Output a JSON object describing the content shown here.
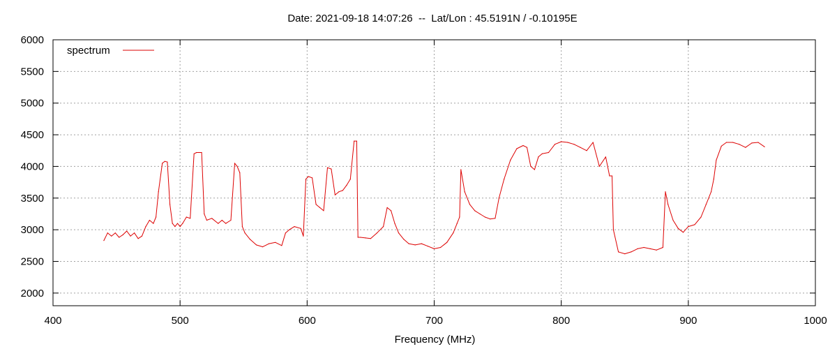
{
  "chart_data": {
    "type": "line",
    "title": "Date: 2021-09-18 14:07:26  --  Lat/Lon : 45.5191N / -0.10195E",
    "xlabel": "Frequency (MHz)",
    "ylabel": "",
    "xlim": [
      400,
      1000
    ],
    "ylim": [
      1800,
      6000
    ],
    "xticks": [
      400,
      500,
      600,
      700,
      800,
      900,
      1000
    ],
    "yticks": [
      2000,
      2500,
      3000,
      3500,
      4000,
      4500,
      5000,
      5500,
      6000
    ],
    "grid": true,
    "legend_position": "top-left",
    "series": [
      {
        "name": "spectrum",
        "color": "#dd0000",
        "x": [
          440,
          443,
          446,
          449,
          452,
          455,
          458,
          461,
          464,
          467,
          470,
          473,
          476,
          479,
          481,
          483,
          486,
          488,
          490,
          492,
          494,
          496,
          498,
          500,
          502,
          505,
          508,
          511,
          513,
          515,
          517,
          519,
          521,
          525,
          530,
          533,
          536,
          540,
          543,
          545,
          547,
          549,
          551,
          555,
          560,
          565,
          570,
          575,
          580,
          583,
          586,
          590,
          595,
          597,
          599,
          601,
          604,
          607,
          610,
          613,
          616,
          619,
          622,
          625,
          628,
          631,
          634,
          637,
          639,
          640,
          642,
          646,
          650,
          655,
          660,
          663,
          666,
          669,
          672,
          676,
          680,
          685,
          690,
          695,
          700,
          705,
          710,
          715,
          718,
          720,
          721,
          724,
          728,
          732,
          736,
          740,
          744,
          748,
          751,
          755,
          760,
          765,
          770,
          773,
          776,
          779,
          782,
          785,
          790,
          795,
          800,
          805,
          810,
          815,
          820,
          825,
          830,
          835,
          838,
          840,
          841,
          845,
          850,
          855,
          860,
          865,
          870,
          875,
          880,
          882,
          884,
          888,
          892,
          896,
          900,
          905,
          910,
          914,
          918,
          920,
          922,
          926,
          930,
          935,
          940,
          945,
          950,
          955,
          960
        ],
        "values": [
          2830,
          2950,
          2900,
          2950,
          2880,
          2920,
          2980,
          2900,
          2950,
          2860,
          2900,
          3050,
          3150,
          3100,
          3200,
          3600,
          4050,
          4080,
          4070,
          3400,
          3100,
          3050,
          3100,
          3050,
          3100,
          3200,
          3180,
          4200,
          4220,
          4220,
          4220,
          3250,
          3150,
          3180,
          3100,
          3150,
          3100,
          3150,
          4050,
          4000,
          3900,
          3050,
          2950,
          2850,
          2760,
          2730,
          2780,
          2800,
          2750,
          2950,
          3000,
          3050,
          3020,
          2900,
          3800,
          3840,
          3820,
          3400,
          3350,
          3300,
          3980,
          3960,
          3550,
          3600,
          3620,
          3700,
          3800,
          4400,
          4400,
          2880,
          2880,
          2870,
          2860,
          2950,
          3050,
          3350,
          3300,
          3100,
          2950,
          2850,
          2780,
          2760,
          2780,
          2740,
          2700,
          2720,
          2800,
          2950,
          3100,
          3200,
          3950,
          3600,
          3400,
          3300,
          3250,
          3200,
          3170,
          3180,
          3500,
          3800,
          4100,
          4280,
          4330,
          4300,
          4000,
          3950,
          4150,
          4200,
          4220,
          4350,
          4390,
          4380,
          4350,
          4300,
          4250,
          4380,
          4000,
          4150,
          3850,
          3850,
          3000,
          2650,
          2620,
          2650,
          2700,
          2720,
          2700,
          2680,
          2720,
          3600,
          3400,
          3150,
          3020,
          2960,
          3050,
          3080,
          3200,
          3400,
          3600,
          3800,
          4100,
          4320,
          4380,
          4380,
          4350,
          4300,
          4370,
          4380,
          4310
        ]
      }
    ]
  }
}
